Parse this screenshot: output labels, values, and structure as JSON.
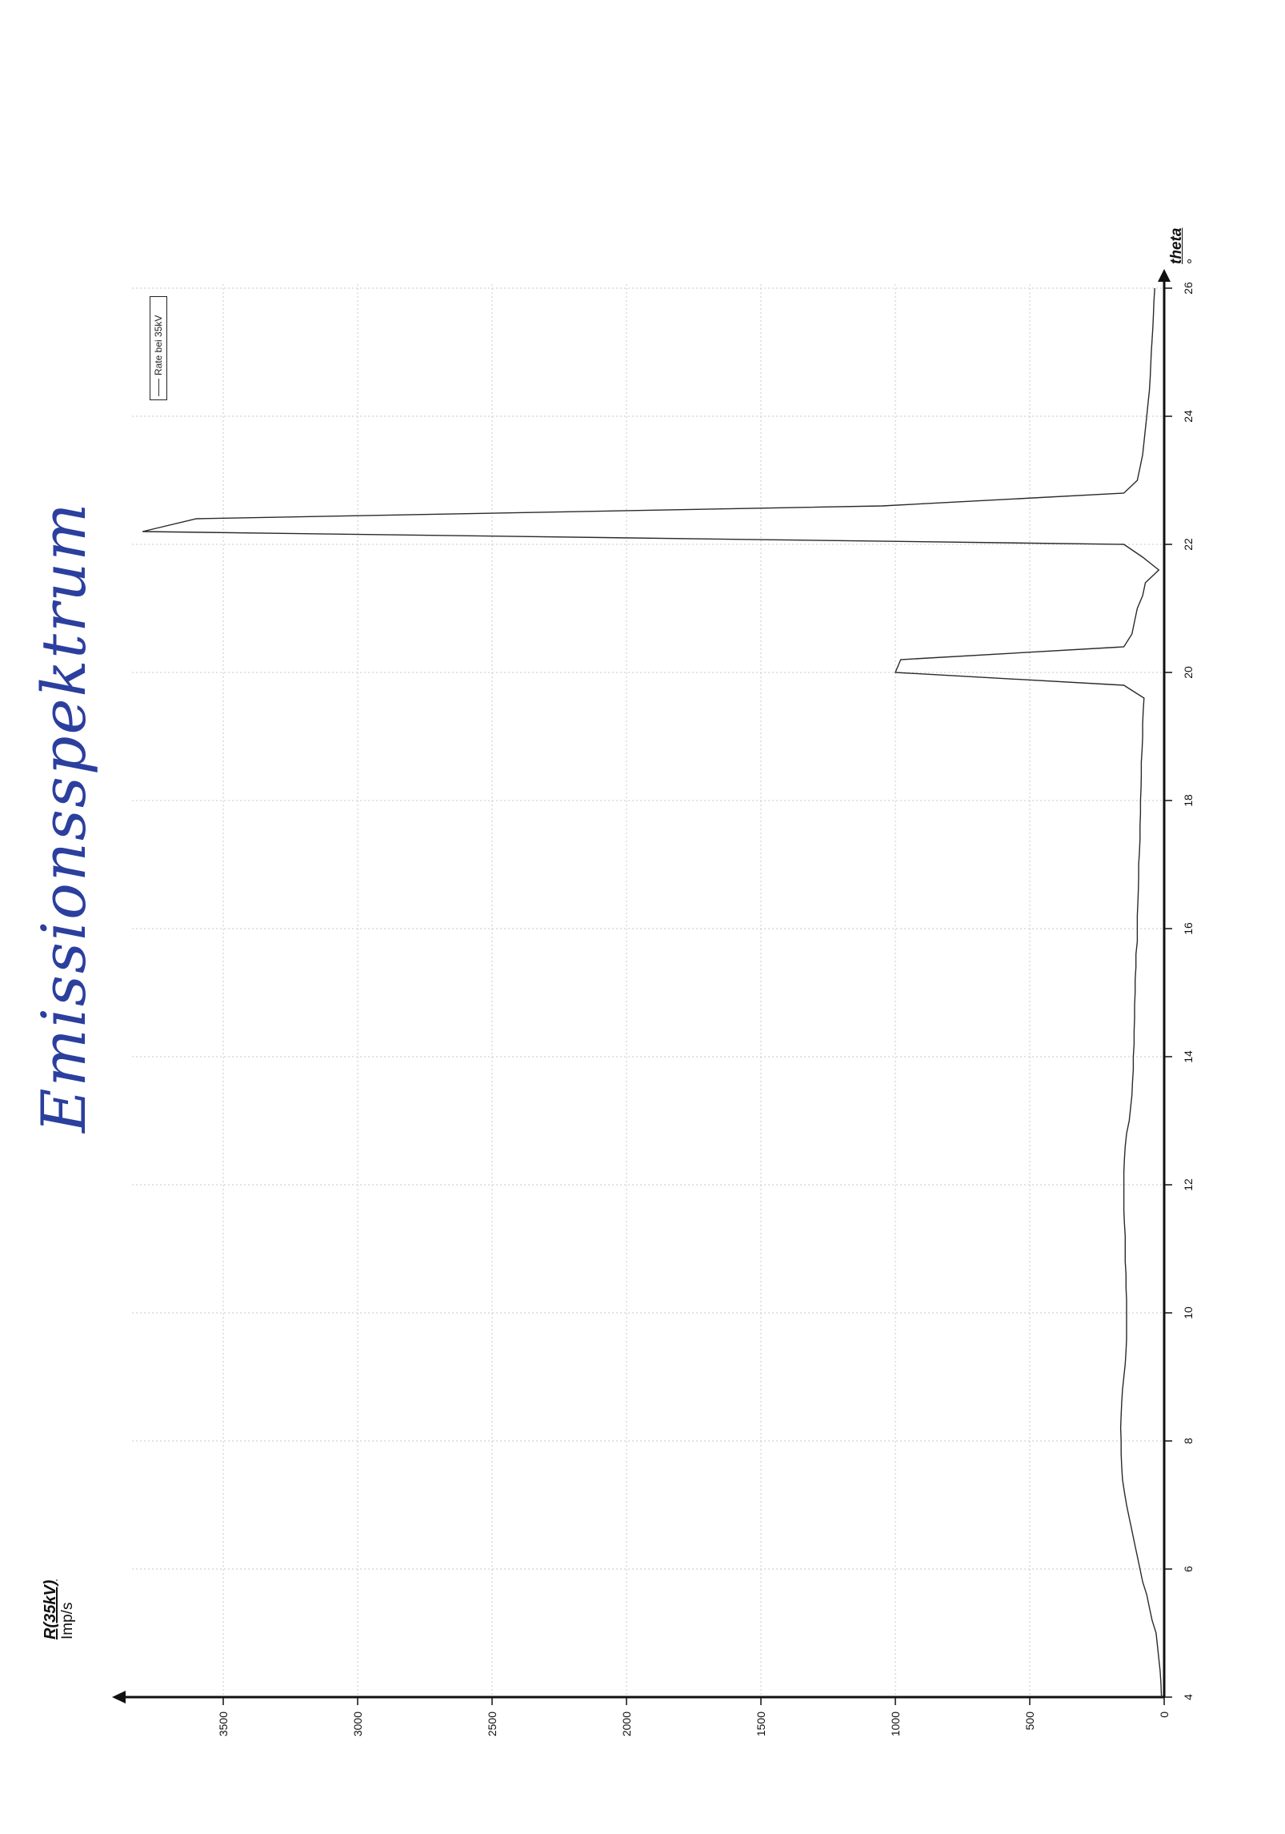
{
  "handwritten_note": "Emissionsspektrum",
  "chart_data": {
    "type": "line",
    "orientation": "rotated 90° counter-clockwise (theta axis runs bottom-to-top, R axis runs right-to-left)",
    "xlabel": "theta",
    "xunit": "°",
    "ylabel": "R(35kV)",
    "yunit": "Imp/s",
    "xlim": [
      4,
      26
    ],
    "ylim": [
      0,
      3800
    ],
    "x_ticks": [
      4,
      6,
      8,
      10,
      12,
      14,
      16,
      18,
      20,
      22,
      24,
      26
    ],
    "y_ticks": [
      0,
      500,
      1000,
      1500,
      2000,
      2500,
      3000,
      3500
    ],
    "grid": true,
    "legend": {
      "placement": "top-left",
      "entries": [
        "Rate bei 35kV"
      ]
    },
    "series": [
      {
        "name": "Rate bei 35kV",
        "color": "#2a2a2a",
        "x": [
          4.0,
          4.2,
          4.4,
          4.6,
          4.8,
          5.0,
          5.2,
          5.4,
          5.6,
          5.8,
          6.0,
          6.2,
          6.4,
          6.6,
          6.8,
          7.0,
          7.2,
          7.4,
          7.6,
          7.8,
          8.0,
          8.2,
          8.4,
          8.6,
          8.8,
          9.0,
          9.2,
          9.4,
          9.6,
          9.8,
          10.0,
          10.2,
          10.4,
          10.6,
          10.8,
          11.0,
          11.2,
          11.4,
          11.6,
          11.8,
          12.0,
          12.2,
          12.4,
          12.6,
          12.8,
          13.0,
          13.2,
          13.4,
          13.6,
          13.8,
          14.0,
          14.2,
          14.4,
          14.6,
          14.8,
          15.0,
          15.2,
          15.4,
          15.6,
          15.8,
          16.0,
          16.2,
          16.4,
          16.6,
          16.8,
          17.0,
          17.2,
          17.4,
          17.6,
          17.8,
          18.0,
          18.2,
          18.4,
          18.6,
          18.8,
          19.0,
          19.2,
          19.4,
          19.6,
          19.8,
          20.0,
          20.2,
          20.4,
          20.6,
          20.8,
          21.0,
          21.2,
          21.4,
          21.6,
          21.8,
          22.0,
          22.2,
          22.4,
          22.6,
          22.8,
          23.0,
          23.2,
          23.4,
          23.6,
          23.8,
          24.0,
          24.2,
          24.4,
          24.6,
          24.8,
          25.0,
          25.2,
          25.4,
          25.6,
          25.8,
          26.0
        ],
        "y": [
          10,
          12,
          15,
          20,
          25,
          30,
          45,
          55,
          65,
          80,
          90,
          100,
          110,
          120,
          130,
          140,
          148,
          155,
          158,
          160,
          160,
          162,
          160,
          158,
          155,
          150,
          145,
          142,
          140,
          140,
          140,
          140,
          142,
          142,
          145,
          145,
          145,
          148,
          150,
          150,
          150,
          150,
          148,
          145,
          140,
          130,
          125,
          120,
          118,
          115,
          115,
          112,
          112,
          110,
          110,
          108,
          108,
          105,
          105,
          100,
          100,
          100,
          98,
          96,
          95,
          95,
          92,
          90,
          90,
          88,
          88,
          86,
          85,
          85,
          82,
          80,
          80,
          78,
          75,
          150,
          1000,
          980,
          150,
          120,
          110,
          100,
          80,
          70,
          20,
          80,
          150,
          3800,
          3600,
          1050,
          150,
          100,
          90,
          80,
          75,
          70,
          65,
          60,
          55,
          52,
          50,
          48,
          45,
          42,
          40,
          38,
          35
        ]
      }
    ]
  }
}
